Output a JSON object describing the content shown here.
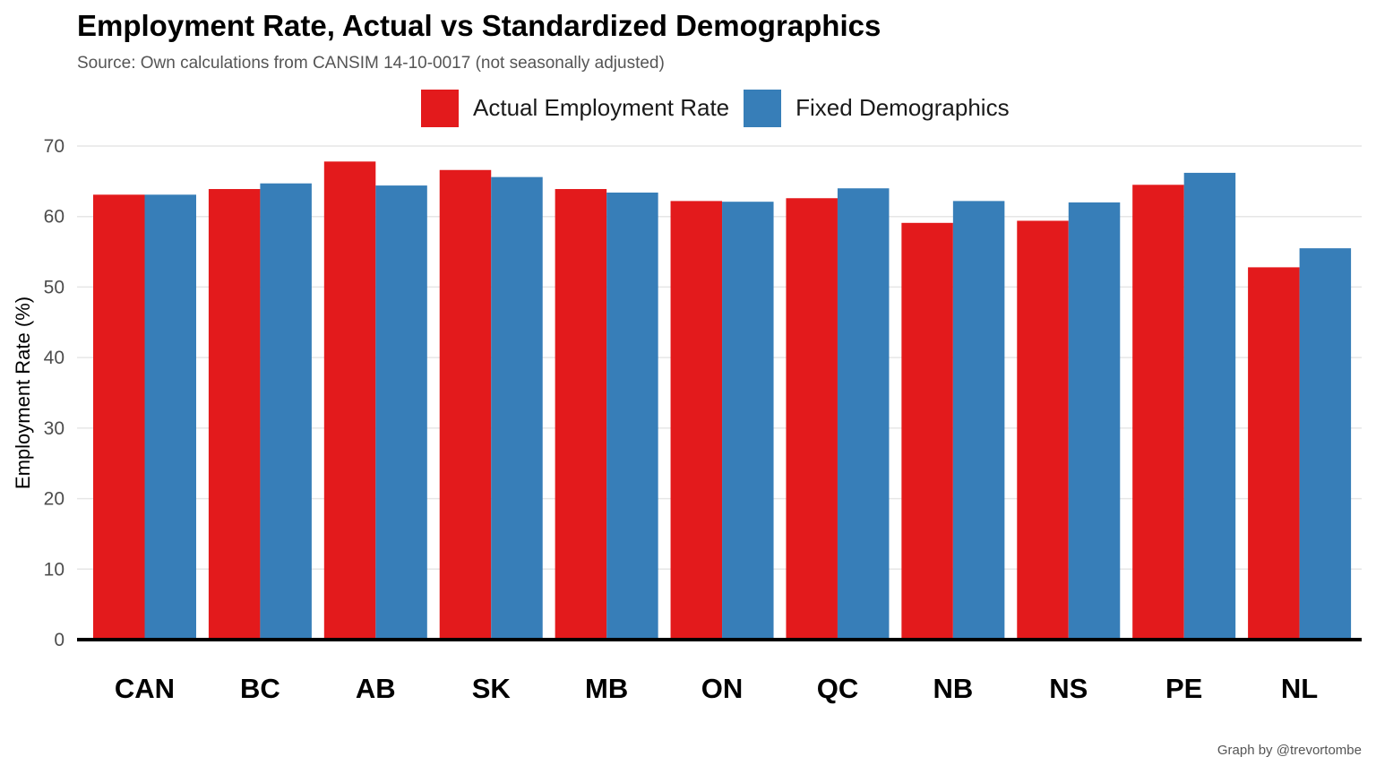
{
  "title": "Employment Rate, Actual vs Standardized Demographics",
  "subtitle": "Source: Own calculations from CANSIM 14-10-0017 (not seasonally adjusted)",
  "caption": "Graph by @trevortombe",
  "chart_data": {
    "type": "bar",
    "title": "Employment Rate, Actual vs Standardized Demographics",
    "subtitle": "Source: Own calculations from CANSIM 14-10-0017 (not seasonally adjusted)",
    "xlabel": "",
    "ylabel": "Employment Rate (%)",
    "ylim": [
      0,
      70
    ],
    "yticks": [
      0,
      10,
      20,
      30,
      40,
      50,
      60,
      70
    ],
    "grid": "horizontal",
    "legend_position": "top",
    "categories": [
      "CAN",
      "BC",
      "AB",
      "SK",
      "MB",
      "ON",
      "QC",
      "NB",
      "NS",
      "PE",
      "NL"
    ],
    "series": [
      {
        "name": "Actual Employment Rate",
        "color": "#e31a1c",
        "values": [
          63.1,
          63.9,
          67.8,
          66.6,
          63.9,
          62.2,
          62.6,
          59.1,
          59.4,
          64.5,
          52.8
        ]
      },
      {
        "name": "Fixed Demographics",
        "color": "#377eb8",
        "values": [
          63.1,
          64.7,
          64.4,
          65.6,
          63.4,
          62.1,
          64.0,
          62.2,
          62.0,
          66.2,
          55.5
        ]
      }
    ]
  }
}
